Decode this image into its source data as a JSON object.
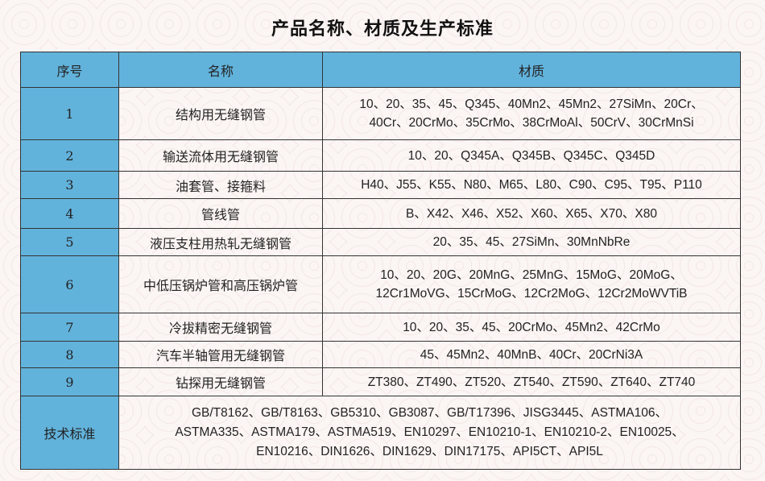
{
  "title": "产品名称、材质及生产标准",
  "headers": {
    "no": "序号",
    "name": "名称",
    "material": "材质"
  },
  "rows": [
    {
      "no": "1",
      "name": "结构用无缝钢管",
      "material_lines": [
        "10、20、35、45、Q345、40Mn2、45Mn2、27SiMn、20Cr、",
        "40Cr、20CrMo、35CrMo、38CrMoAl、50CrV、30CrMnSi"
      ]
    },
    {
      "no": "2",
      "name": "输送流体用无缝钢管",
      "material_lines": [
        "10、20、Q345A、Q345B、Q345C、Q345D"
      ]
    },
    {
      "no": "3",
      "name": "油套管、接箍料",
      "material_lines": [
        "H40、J55、K55、N80、M65、L80、C90、C95、T95、P110"
      ]
    },
    {
      "no": "4",
      "name": "管线管",
      "material_lines": [
        "B、X42、X46、X52、X60、X65、X70、X80"
      ]
    },
    {
      "no": "5",
      "name": "液压支柱用热轧无缝钢管",
      "material_lines": [
        "20、35、45、27SiMn、30MnNbRe"
      ]
    },
    {
      "no": "6",
      "name": "中低压锅炉管和高压锅炉管",
      "material_lines": [
        "10、20、20G、20MnG、25MnG、15MoG、20MoG、",
        "12Cr1MoVG、15CrMoG、12Cr2MoG、12Cr2MoWVTiB"
      ]
    },
    {
      "no": "7",
      "name": "冷拔精密无缝钢管",
      "material_lines": [
        "10、20、35、45、20CrMo、45Mn2、42CrMo"
      ]
    },
    {
      "no": "8",
      "name": "汽车半轴管用无缝钢管",
      "material_lines": [
        "45、45Mn2、40MnB、40Cr、20CrNi3A"
      ]
    },
    {
      "no": "9",
      "name": "钻探用无缝钢管",
      "material_lines": [
        "ZT380、ZT490、ZT520、ZT540、ZT590、ZT640、ZT740"
      ]
    }
  ],
  "standards": {
    "label": "技术标准",
    "lines": [
      "GB/T8162、GB/T8163、GB5310、GB3087、GB/T17396、JISG3445、ASTMA106、",
      "ASTMA335、ASTMA179、ASTMA519、EN10297、EN10210-1、EN10210-2、EN10025、",
      "EN10216、DIN1626、DIN1629、DIN17175、API5CT、API5L"
    ]
  },
  "colors": {
    "header": "#62b3dc",
    "border": "#333333",
    "background": "#fbf5f3"
  }
}
